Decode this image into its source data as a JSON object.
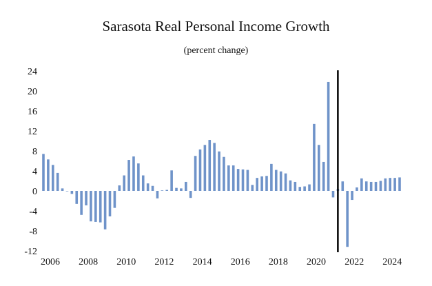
{
  "chart_data": {
    "type": "bar",
    "title": "Sarasota Real Personal Income Growth",
    "subtitle": "(percent change)",
    "xlabel": "",
    "ylabel": "",
    "ylim": [
      -12,
      24
    ],
    "y_ticks": [
      -12,
      -8,
      -4,
      0,
      4,
      8,
      12,
      16,
      20,
      24
    ],
    "x_tick_labels": [
      "2006",
      "2008",
      "2010",
      "2012",
      "2014",
      "2016",
      "2018",
      "2020",
      "2022",
      "2024"
    ],
    "x_range": [
      2006,
      2024.75
    ],
    "forecast_divider_x": 2021.5,
    "grid": false,
    "colors": {
      "bar": "#6f93c9",
      "divider": "#000000",
      "text": "#111111"
    },
    "x": [
      "2006Q1",
      "2006Q2",
      "2006Q3",
      "2006Q4",
      "2007Q1",
      "2007Q2",
      "2007Q3",
      "2007Q4",
      "2008Q1",
      "2008Q2",
      "2008Q3",
      "2008Q4",
      "2009Q1",
      "2009Q2",
      "2009Q3",
      "2009Q4",
      "2010Q1",
      "2010Q2",
      "2010Q3",
      "2010Q4",
      "2011Q1",
      "2011Q2",
      "2011Q3",
      "2011Q4",
      "2012Q1",
      "2012Q2",
      "2012Q3",
      "2012Q4",
      "2013Q1",
      "2013Q2",
      "2013Q3",
      "2013Q4",
      "2014Q1",
      "2014Q2",
      "2014Q3",
      "2014Q4",
      "2015Q1",
      "2015Q2",
      "2015Q3",
      "2015Q4",
      "2016Q1",
      "2016Q2",
      "2016Q3",
      "2016Q4",
      "2017Q1",
      "2017Q2",
      "2017Q3",
      "2017Q4",
      "2018Q1",
      "2018Q2",
      "2018Q3",
      "2018Q4",
      "2019Q1",
      "2019Q2",
      "2019Q3",
      "2019Q4",
      "2020Q1",
      "2020Q2",
      "2020Q3",
      "2020Q4",
      "2021Q1",
      "2021Q2",
      "2021Q3",
      "2021Q4",
      "2022Q1",
      "2022Q2",
      "2022Q3",
      "2022Q4",
      "2023Q1",
      "2023Q2",
      "2023Q3",
      "2023Q4",
      "2024Q1",
      "2024Q2",
      "2024Q3",
      "2024Q4"
    ],
    "values": [
      7.4,
      6.3,
      5.2,
      3.6,
      0.5,
      0.0,
      -0.6,
      -2.6,
      -4.8,
      -2.9,
      -6.1,
      -6.2,
      -6.3,
      -7.7,
      -5.1,
      -3.4,
      1.1,
      3.1,
      6.2,
      6.9,
      5.5,
      3.1,
      1.5,
      1.0,
      -1.5,
      0.1,
      0.2,
      4.1,
      0.6,
      0.5,
      1.8,
      -1.4,
      7.0,
      8.3,
      9.2,
      10.2,
      9.6,
      7.9,
      6.8,
      5.1,
      5.1,
      4.4,
      4.3,
      4.2,
      1.2,
      2.6,
      2.9,
      3.0,
      5.4,
      4.2,
      3.9,
      3.5,
      2.1,
      1.8,
      0.8,
      0.9,
      1.3,
      13.4,
      9.2,
      5.8,
      21.8,
      -1.3,
      0.4,
      1.9,
      -11.2,
      -1.8,
      0.7,
      2.5,
      1.9,
      1.8,
      1.8,
      2.0,
      2.5,
      2.6,
      2.6,
      2.7
    ]
  }
}
